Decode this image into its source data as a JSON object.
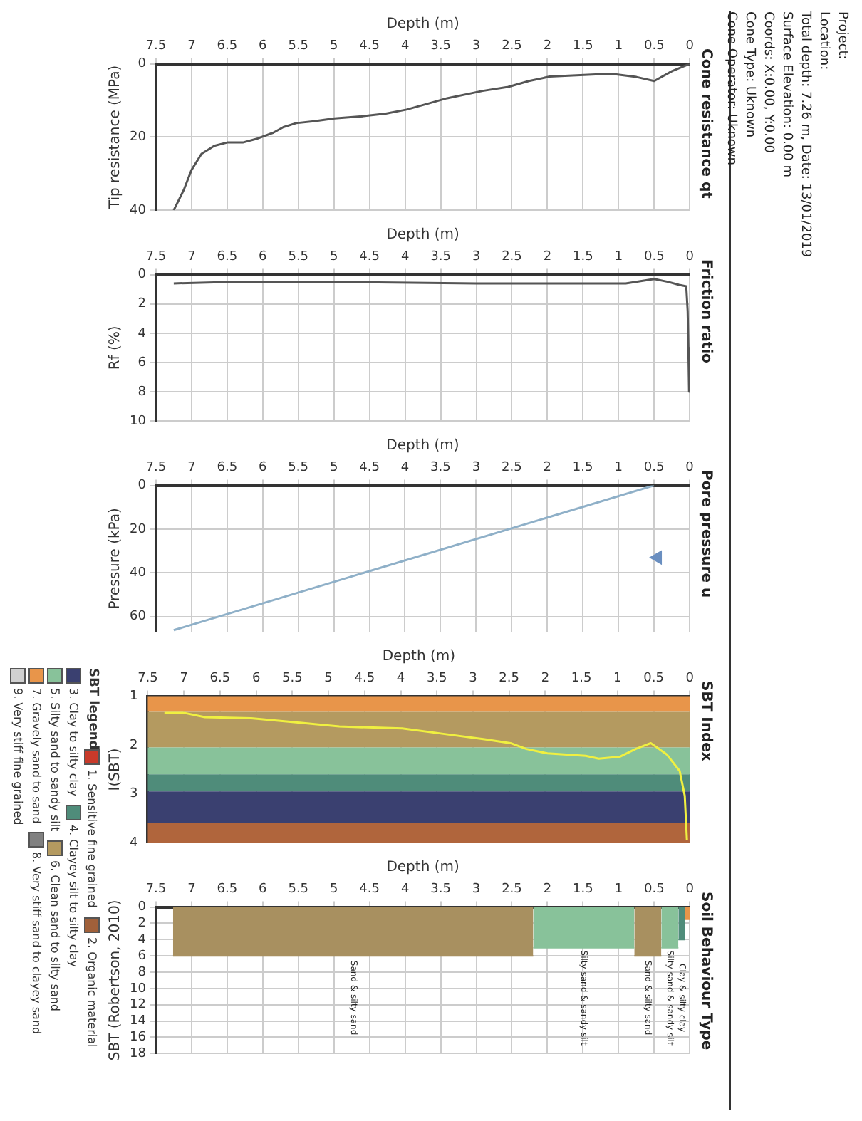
{
  "chart_data": [
    {
      "type": "line",
      "title": "Cone resistance qt",
      "xlabel": "Depth (m)",
      "ylabel": "Tip resistance (MPa)",
      "xlim": [
        7.5,
        0
      ],
      "xticks": [
        7.5,
        7,
        6.5,
        6,
        5.5,
        5,
        4.5,
        4,
        3.5,
        3,
        2.5,
        2,
        1.5,
        1,
        0.5,
        0
      ],
      "ylim": [
        40,
        0
      ],
      "yticks": [
        0,
        20,
        40
      ],
      "grid": true,
      "marker": "none",
      "series": [
        {
          "color": "#555555",
          "x": [
            0,
            0.25,
            0.5,
            0.75,
            1.11,
            1.54,
            1.97,
            2.26,
            2.55,
            2.91,
            3.41,
            3.7,
            3.98,
            4.27,
            4.63,
            4.99,
            5.28,
            5.53,
            5.71,
            5.85,
            6.07,
            6.28,
            6.5,
            6.68,
            6.86,
            7.0,
            7.11,
            7.25
          ],
          "values": [
            0,
            2.0,
            4.7,
            3.6,
            2.7,
            3.1,
            3.5,
            4.7,
            6.3,
            7.4,
            9.4,
            11,
            12.5,
            13.6,
            14.4,
            14.9,
            15.7,
            16.2,
            17.3,
            18.8,
            20.4,
            21.5,
            21.5,
            22.4,
            24.6,
            29,
            34.5,
            40
          ]
        }
      ]
    },
    {
      "type": "line",
      "title": "Friction ratio",
      "xlabel": "Depth (m)",
      "ylabel": "Rf (%)",
      "xlim": [
        7.5,
        0
      ],
      "xticks": [
        7.5,
        7,
        6.5,
        6,
        5.5,
        5,
        4.5,
        4,
        3.5,
        3,
        2.5,
        2,
        1.5,
        1,
        0.5,
        0
      ],
      "ylim": [
        10,
        0
      ],
      "yticks": [
        0,
        2,
        4,
        6,
        8,
        10
      ],
      "grid": true,
      "marker": "none",
      "series": [
        {
          "color": "#555555",
          "x": [
            7.25,
            6.5,
            5,
            3,
            1.5,
            0.9,
            0.5,
            0.3,
            0.15,
            0.05,
            0.03,
            0.02,
            0.01
          ],
          "values": [
            0.6,
            0.5,
            0.5,
            0.6,
            0.6,
            0.6,
            0.3,
            0.5,
            0.7,
            0.8,
            2.5,
            5,
            8
          ]
        }
      ]
    },
    {
      "type": "line",
      "title": "Pore pressure u",
      "xlabel": "Depth (m)",
      "ylabel": "Pressure (kPa)",
      "xlim": [
        7.5,
        0
      ],
      "xticks": [
        7.5,
        7,
        6.5,
        6,
        5.5,
        5,
        4.5,
        4,
        3.5,
        3,
        2.5,
        2,
        1.5,
        1,
        0.5,
        0
      ],
      "ylim": [
        67,
        0
      ],
      "yticks": [
        0,
        20,
        40,
        60
      ],
      "grid": true,
      "marker": "none",
      "series": [
        {
          "color": "#8fb0c8",
          "x": [
            0.5,
            7.25
          ],
          "values": [
            0,
            66.2
          ]
        },
        {
          "type": "scatter",
          "marker": "triangle",
          "color": "#6a8fc0",
          "x": [
            0.45
          ],
          "values": [
            33
          ]
        }
      ]
    },
    {
      "type": "line",
      "title": "SBT Index",
      "xlabel": "Depth (m)",
      "ylabel": "I(SBT)",
      "xlim": [
        7.5,
        0
      ],
      "xticks": [
        7.5,
        7,
        6.5,
        6,
        5.5,
        5,
        4.5,
        4,
        3.5,
        3,
        2.5,
        2,
        1.5,
        1,
        0.5,
        0
      ],
      "ylim": [
        4,
        1
      ],
      "yticks": [
        1,
        2,
        3,
        4
      ],
      "grid": "x",
      "marker": "none",
      "bands": [
        {
          "axis": "y",
          "from": 1,
          "to": 1.32,
          "color": "#e8954a"
        },
        {
          "axis": "y",
          "from": 1.32,
          "to": 2.05,
          "color": "#b49a60"
        },
        {
          "axis": "y",
          "from": 2.05,
          "to": 2.6,
          "color": "#88c29a"
        },
        {
          "axis": "y",
          "from": 2.6,
          "to": 2.95,
          "color": "#4f8c7a"
        },
        {
          "axis": "y",
          "from": 2.95,
          "to": 3.6,
          "color": "#3a4070"
        },
        {
          "axis": "y",
          "from": 3.6,
          "to": 4,
          "color": "#b0653c"
        }
      ],
      "series": [
        {
          "color": "#f0f040",
          "x": [
            7.27,
            7.0,
            6.71,
            6.07,
            5.42,
            4.85,
            3.98,
            3.41,
            2.84,
            2.48,
            2.26,
            1.97,
            1.44,
            1.26,
            0.97,
            0.75,
            0.54,
            0.32,
            0.14,
            0.07,
            0.04
          ],
          "values": [
            1.34,
            1.34,
            1.43,
            1.45,
            1.54,
            1.62,
            1.66,
            1.77,
            1.88,
            1.96,
            2.08,
            2.17,
            2.22,
            2.28,
            2.24,
            2.08,
            1.96,
            2.19,
            2.53,
            3.04,
            3.94
          ]
        }
      ]
    },
    {
      "type": "area",
      "title": "Soil Behaviour Type",
      "xlabel": "Depth (m)",
      "ylabel": "SBT (Robertson, 2010)",
      "xlim": [
        7.5,
        0
      ],
      "xticks": [
        7.5,
        7,
        6.5,
        6,
        5.5,
        5,
        4.5,
        4,
        3.5,
        3,
        2.5,
        2,
        1.5,
        1,
        0.5,
        0
      ],
      "ylim": [
        18,
        0
      ],
      "yticks": [
        0,
        2,
        4,
        6,
        8,
        10,
        12,
        14,
        16,
        18
      ],
      "grid": true,
      "marker": "none",
      "series": [
        {
          "color": "#a89060",
          "x": [
            7.26,
            2.2
          ],
          "values": [
            6,
            6
          ]
        },
        {
          "color": "#88c29a",
          "x": [
            2.2,
            0.78
          ],
          "values": [
            5,
            5
          ]
        },
        {
          "color": "#a89060",
          "x": [
            0.78,
            0.4
          ],
          "values": [
            6,
            6
          ]
        },
        {
          "color": "#88c29a",
          "x": [
            0.4,
            0.16
          ],
          "values": [
            5,
            5
          ]
        },
        {
          "color": "#4f8c7a",
          "x": [
            0.16,
            0.07
          ],
          "values": [
            4,
            4
          ]
        },
        {
          "color": "#e8954a",
          "x": [
            0.07,
            0
          ],
          "values": [
            1.5,
            1.5
          ]
        }
      ],
      "annotations": [
        "Sand & silty sand",
        "Silty sand & sandy silt",
        "Sand & silty sand",
        "Silty sand & sandy silt",
        "Clay & silty clay"
      ]
    },
    {
      "type": "other",
      "title": "SBT legend",
      "annotations": [
        "1. Sensitive fine grained",
        "2. Organic material",
        "3. Clay to silty clay",
        "4. Clayey silt to silty clay",
        "5. Silty sand to sandy silt",
        "6. Clean sand to silty sand",
        "7. Gravely sand to sand",
        "8. Very stiff sand to clayey sand",
        "9. Very stiff fine grained"
      ],
      "colors": [
        "#c83a2a",
        "#a0603a",
        "#3a4070",
        "#4f8c7a",
        "#88c29a",
        "#b49a60",
        "#e8954a",
        "#808080",
        "#d0d0d0"
      ]
    },
    {
      "type": "other",
      "annotations": [
        "Project:",
        "Location:",
        "Total depth: 7.26 m, Date: 13/01/2019",
        "Surface Elevation: 0.00 m",
        "Coords: X:0.00, Y:0.00",
        "Cone Type: Uknown",
        "Cone Operator: Uknown"
      ]
    }
  ]
}
